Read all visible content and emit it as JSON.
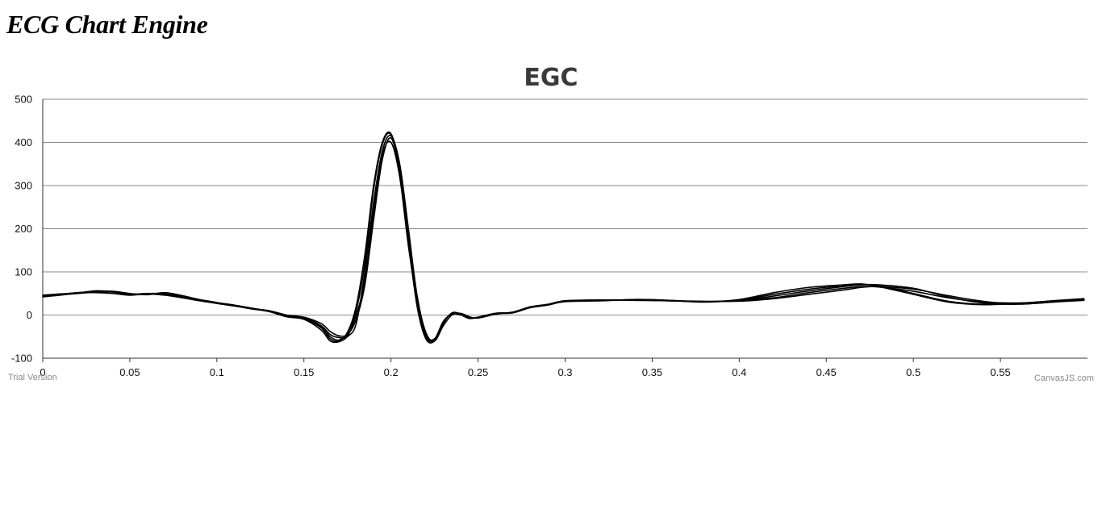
{
  "page": {
    "heading": "ECG Chart Engine"
  },
  "chart_data": {
    "type": "line",
    "title": "EGC",
    "xlabel": "",
    "ylabel": "",
    "xlim": [
      0,
      0.6
    ],
    "ylim": [
      -100,
      500
    ],
    "x_ticks": [
      0,
      0.05,
      0.1,
      0.15,
      0.2,
      0.25,
      0.3,
      0.35,
      0.4,
      0.45,
      0.5,
      0.55
    ],
    "x_tick_labels": [
      "0",
      "0.05",
      "0.1",
      "0.15",
      "0.2",
      "0.25",
      "0.3",
      "0.35",
      "0.4",
      "0.45",
      "0.5",
      "0.55"
    ],
    "y_ticks": [
      -100,
      0,
      100,
      200,
      300,
      400,
      500
    ],
    "y_tick_labels": [
      "-100",
      "0",
      "100",
      "200",
      "300",
      "400",
      "500"
    ],
    "grid": true,
    "line_color": "#000000",
    "series": [
      {
        "x": [
          0,
          0.01,
          0.02,
          0.03,
          0.04,
          0.05,
          0.06,
          0.07,
          0.08,
          0.09,
          0.1,
          0.11,
          0.12,
          0.13,
          0.14,
          0.15,
          0.16,
          0.165,
          0.17,
          0.175,
          0.18,
          0.185,
          0.19,
          0.195,
          0.2,
          0.205,
          0.21,
          0.215,
          0.22,
          0.225,
          0.23,
          0.235,
          0.24,
          0.245,
          0.25,
          0.26,
          0.27,
          0.28,
          0.29,
          0.3,
          0.32,
          0.34,
          0.36,
          0.38,
          0.4,
          0.42,
          0.44,
          0.46,
          0.47,
          0.48,
          0.5,
          0.52,
          0.54,
          0.56,
          0.58,
          0.598
        ],
        "y": [
          43,
          47,
          50,
          55,
          53,
          48,
          50,
          48,
          42,
          35,
          28,
          22,
          15,
          10,
          0,
          -5,
          -20,
          -38,
          -48,
          -45,
          -10,
          70,
          220,
          360,
          410,
          330,
          180,
          40,
          -45,
          -55,
          -15,
          2,
          0,
          -8,
          -5,
          4,
          6,
          18,
          24,
          32,
          34,
          35,
          33,
          31,
          33,
          40,
          52,
          62,
          66,
          65,
          55,
          40,
          30,
          28,
          32,
          36
        ]
      },
      {
        "x": [
          0,
          0.01,
          0.02,
          0.03,
          0.04,
          0.05,
          0.06,
          0.07,
          0.08,
          0.09,
          0.1,
          0.11,
          0.12,
          0.13,
          0.14,
          0.15,
          0.16,
          0.165,
          0.17,
          0.175,
          0.18,
          0.185,
          0.19,
          0.195,
          0.2,
          0.205,
          0.21,
          0.215,
          0.22,
          0.225,
          0.23,
          0.235,
          0.24,
          0.245,
          0.25,
          0.26,
          0.27,
          0.28,
          0.29,
          0.3,
          0.32,
          0.34,
          0.36,
          0.38,
          0.4,
          0.42,
          0.44,
          0.46,
          0.47,
          0.48,
          0.5,
          0.52,
          0.54,
          0.56,
          0.58,
          0.598
        ],
        "y": [
          45,
          48,
          52,
          54,
          55,
          50,
          47,
          52,
          45,
          36,
          29,
          23,
          16,
          9,
          -2,
          -8,
          -30,
          -55,
          -60,
          -40,
          20,
          140,
          300,
          400,
          420,
          340,
          170,
          20,
          -55,
          -60,
          -20,
          5,
          2,
          -6,
          -6,
          3,
          5,
          17,
          23,
          31,
          33,
          36,
          34,
          30,
          35,
          48,
          60,
          68,
          70,
          68,
          50,
          32,
          25,
          27,
          31,
          35
        ]
      },
      {
        "x": [
          0,
          0.01,
          0.02,
          0.03,
          0.04,
          0.05,
          0.06,
          0.07,
          0.08,
          0.09,
          0.1,
          0.11,
          0.12,
          0.13,
          0.14,
          0.15,
          0.16,
          0.165,
          0.17,
          0.175,
          0.18,
          0.185,
          0.19,
          0.195,
          0.2,
          0.205,
          0.21,
          0.215,
          0.22,
          0.225,
          0.23,
          0.235,
          0.24,
          0.245,
          0.25,
          0.26,
          0.27,
          0.28,
          0.29,
          0.3,
          0.32,
          0.34,
          0.36,
          0.38,
          0.4,
          0.42,
          0.44,
          0.46,
          0.47,
          0.48,
          0.5,
          0.52,
          0.54,
          0.56,
          0.58,
          0.598
        ],
        "y": [
          42,
          46,
          51,
          52,
          50,
          46,
          49,
          46,
          40,
          33,
          27,
          21,
          14,
          8,
          -4,
          -10,
          -35,
          -60,
          -62,
          -50,
          -20,
          100,
          260,
          380,
          415,
          350,
          200,
          45,
          -40,
          -60,
          -25,
          0,
          4,
          -4,
          -7,
          2,
          7,
          19,
          25,
          33,
          35,
          34,
          33,
          32,
          32,
          38,
          48,
          58,
          64,
          66,
          60,
          45,
          32,
          26,
          30,
          37
        ]
      },
      {
        "x": [
          0,
          0.01,
          0.02,
          0.03,
          0.04,
          0.05,
          0.06,
          0.07,
          0.08,
          0.09,
          0.1,
          0.11,
          0.12,
          0.13,
          0.14,
          0.15,
          0.16,
          0.165,
          0.17,
          0.175,
          0.18,
          0.185,
          0.19,
          0.195,
          0.2,
          0.205,
          0.21,
          0.215,
          0.22,
          0.225,
          0.23,
          0.235,
          0.24,
          0.245,
          0.25,
          0.26,
          0.27,
          0.28,
          0.29,
          0.3,
          0.32,
          0.34,
          0.36,
          0.38,
          0.4,
          0.42,
          0.44,
          0.46,
          0.47,
          0.48,
          0.5,
          0.52,
          0.54,
          0.56,
          0.58,
          0.598
        ],
        "y": [
          44,
          47,
          50,
          53,
          54,
          49,
          48,
          50,
          43,
          35,
          28,
          22,
          15,
          10,
          -1,
          -6,
          -25,
          -45,
          -52,
          -48,
          0,
          80,
          240,
          370,
          400,
          320,
          160,
          30,
          -50,
          -58,
          -18,
          3,
          1,
          -7,
          -5,
          4,
          6,
          18,
          24,
          32,
          34,
          35,
          33,
          31,
          34,
          44,
          56,
          66,
          70,
          70,
          62,
          42,
          28,
          25,
          30,
          34
        ]
      },
      {
        "x": [
          0,
          0.01,
          0.02,
          0.03,
          0.04,
          0.05,
          0.06,
          0.07,
          0.08,
          0.09,
          0.1,
          0.11,
          0.12,
          0.13,
          0.14,
          0.15,
          0.16,
          0.165,
          0.17,
          0.175,
          0.18,
          0.185,
          0.19,
          0.195,
          0.2,
          0.205,
          0.21,
          0.215,
          0.22,
          0.225,
          0.23,
          0.235,
          0.24,
          0.245,
          0.25,
          0.26,
          0.27,
          0.28,
          0.29,
          0.3,
          0.32,
          0.34,
          0.36,
          0.38,
          0.4,
          0.42,
          0.44,
          0.46,
          0.47,
          0.48,
          0.5,
          0.52,
          0.54,
          0.56,
          0.58,
          0.598
        ],
        "y": [
          46,
          49,
          51,
          56,
          54,
          47,
          50,
          49,
          41,
          34,
          27,
          21,
          15,
          9,
          -3,
          -7,
          -28,
          -50,
          -58,
          -42,
          10,
          120,
          290,
          395,
          418,
          335,
          175,
          35,
          -48,
          -57,
          -17,
          4,
          3,
          -5,
          -6,
          3,
          6,
          18,
          24,
          33,
          33,
          36,
          34,
          31,
          36,
          52,
          64,
          70,
          72,
          66,
          48,
          30,
          24,
          27,
          33,
          38
        ]
      }
    ]
  },
  "watermark": {
    "left": "Trial Version",
    "right": "CanvasJS.com"
  }
}
